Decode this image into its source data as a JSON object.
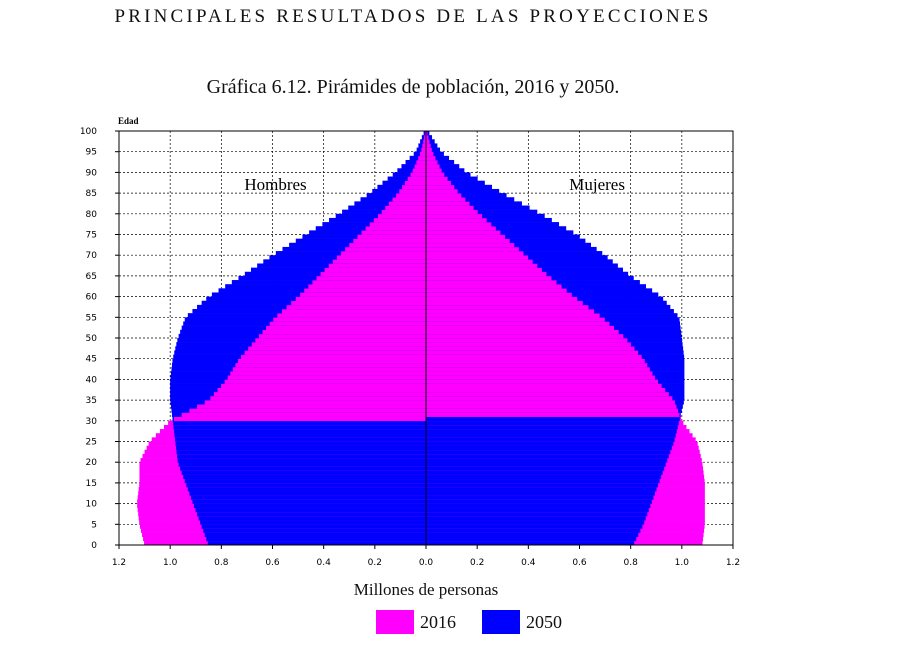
{
  "header": {
    "text": "PRINCIPALES RESULTADOS DE LAS PROYECCIONES"
  },
  "chart_data": {
    "type": "population-pyramid",
    "title": "Gráfica 6.12. Pirámides de población, 2016 y 2050.",
    "xlabel": "Millones de personas",
    "ylabel": "Edad",
    "left_panel_label": "Hombres",
    "right_panel_label": "Mujeres",
    "xlim": [
      -1.2,
      1.2
    ],
    "ylim": [
      0,
      100
    ],
    "x_ticks": [
      -1.2,
      -1.0,
      -0.8,
      -0.6,
      -0.4,
      -0.2,
      0.0,
      0.2,
      0.4,
      0.6,
      0.8,
      1.0,
      1.2
    ],
    "x_tick_labels": [
      "1.2",
      "1.0",
      "0.8",
      "0.6",
      "0.4",
      "0.2",
      "0.0",
      "0.2",
      "0.4",
      "0.6",
      "0.8",
      "1.0",
      "1.2"
    ],
    "y_ticks": [
      0,
      5,
      10,
      15,
      20,
      25,
      30,
      35,
      40,
      45,
      50,
      55,
      60,
      65,
      70,
      75,
      80,
      85,
      90,
      95,
      100
    ],
    "grid": true,
    "legend_position": "bottom-center",
    "ages": [
      0,
      5,
      10,
      15,
      20,
      25,
      30,
      35,
      40,
      45,
      50,
      55,
      60,
      65,
      70,
      75,
      80,
      85,
      90,
      95,
      100
    ],
    "series": [
      {
        "name": "2016",
        "color": "#ff00ff",
        "hombres": [
          1.1,
          1.12,
          1.13,
          1.12,
          1.12,
          1.08,
          1.0,
          0.85,
          0.78,
          0.73,
          0.66,
          0.59,
          0.5,
          0.42,
          0.34,
          0.26,
          0.18,
          0.11,
          0.055,
          0.02,
          0.002
        ],
        "mujeres": [
          1.08,
          1.09,
          1.09,
          1.09,
          1.08,
          1.06,
          1.0,
          0.97,
          0.9,
          0.85,
          0.78,
          0.69,
          0.58,
          0.48,
          0.39,
          0.3,
          0.21,
          0.13,
          0.065,
          0.025,
          0.003
        ]
      },
      {
        "name": "2050",
        "color": "#0000ff",
        "hombres": [
          0.85,
          0.88,
          0.91,
          0.94,
          0.97,
          0.98,
          0.99,
          1.0,
          1.0,
          0.99,
          0.97,
          0.94,
          0.85,
          0.72,
          0.6,
          0.47,
          0.34,
          0.22,
          0.12,
          0.04,
          0.006
        ],
        "mujeres": [
          0.81,
          0.85,
          0.88,
          0.91,
          0.94,
          0.97,
          0.99,
          1.01,
          1.01,
          1.01,
          1.0,
          0.99,
          0.92,
          0.8,
          0.7,
          0.59,
          0.45,
          0.3,
          0.16,
          0.06,
          0.008
        ]
      }
    ]
  }
}
